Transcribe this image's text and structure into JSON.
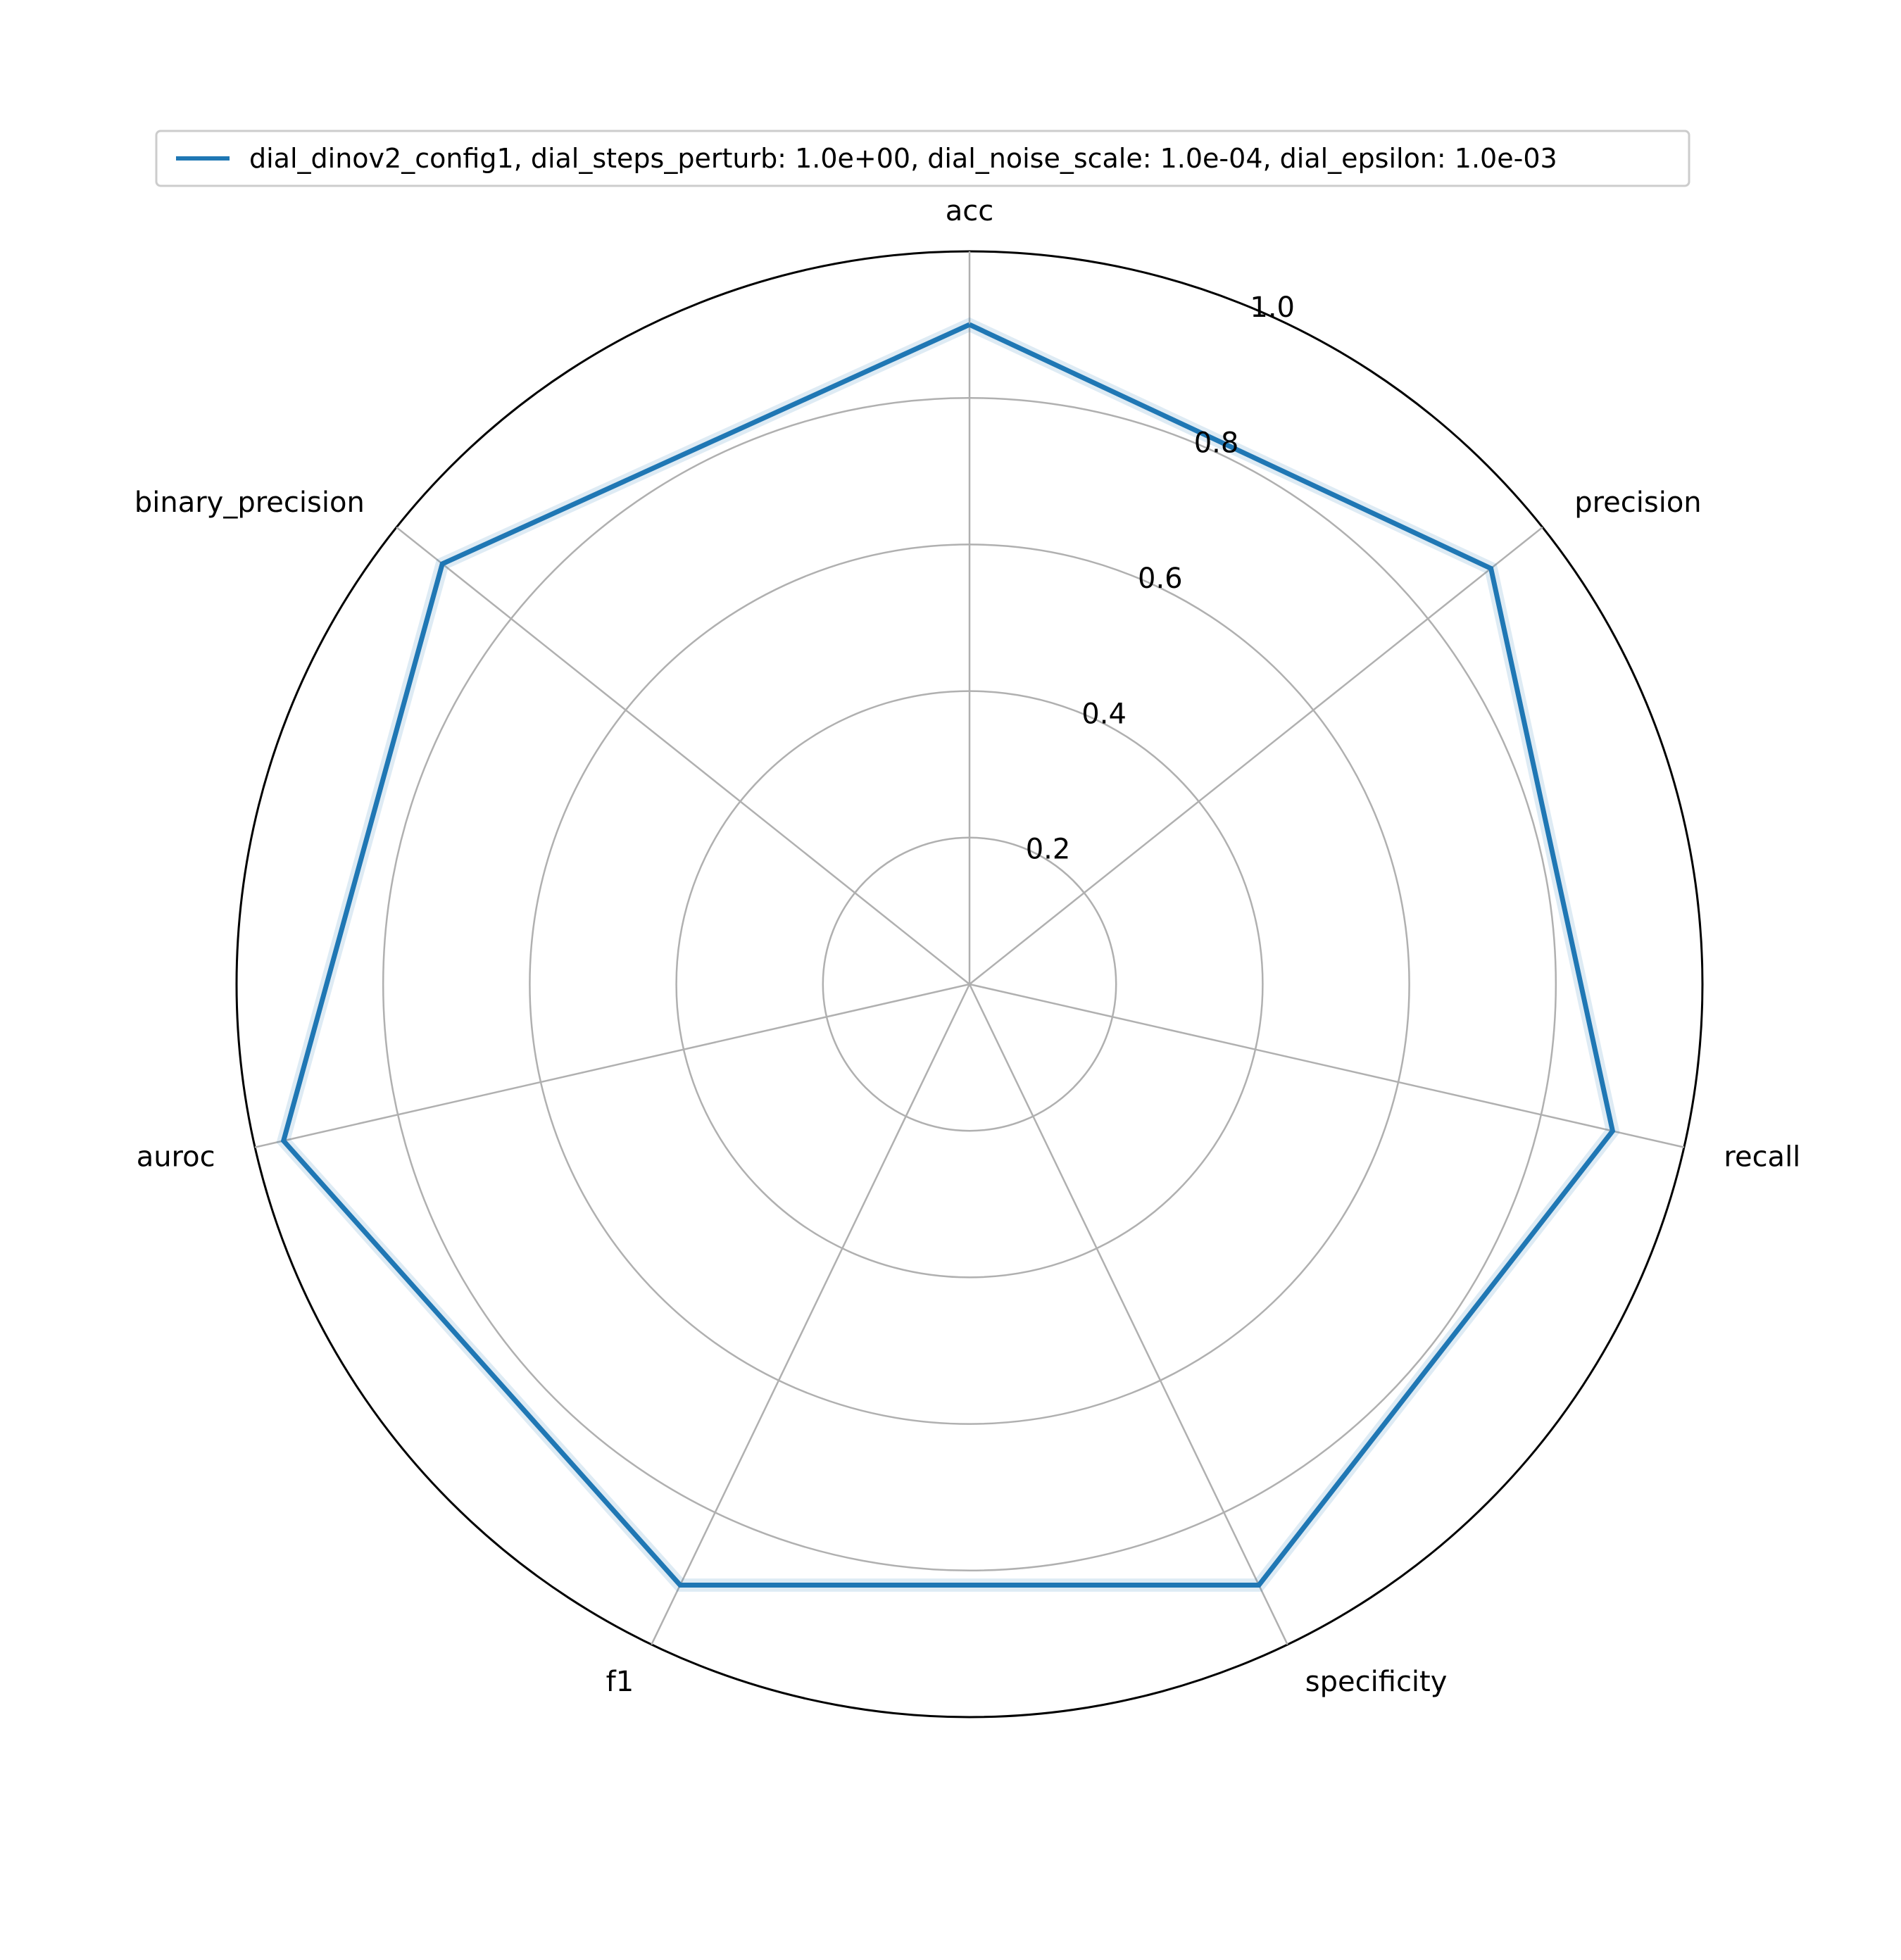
{
  "chart_data": {
    "type": "radar",
    "axes": [
      "acc",
      "precision",
      "recall",
      "specificity",
      "f1",
      "auroc",
      "binary_precision"
    ],
    "series": [
      {
        "name": "dial_dinov2_config1, dial_steps_perturb: 1.0e+00, dial_noise_scale: 1.0e-04, dial_epsilon: 1.0e-03",
        "color": "#1f77b4",
        "values": [
          0.9,
          0.91,
          0.9,
          0.91,
          0.91,
          0.96,
          0.92
        ],
        "band_lower": [
          0.89,
          0.9,
          0.89,
          0.9,
          0.9,
          0.95,
          0.91
        ],
        "band_upper": [
          0.91,
          0.92,
          0.91,
          0.92,
          0.92,
          0.97,
          0.93
        ]
      }
    ],
    "rticks": [
      "0.2",
      "0.4",
      "0.6",
      "0.8",
      "1.0"
    ],
    "rtick_values": [
      0.2,
      0.4,
      0.6,
      0.8,
      1.0
    ],
    "rlim": [
      0,
      1.0
    ],
    "grid": true,
    "legend_position": "top-center"
  }
}
